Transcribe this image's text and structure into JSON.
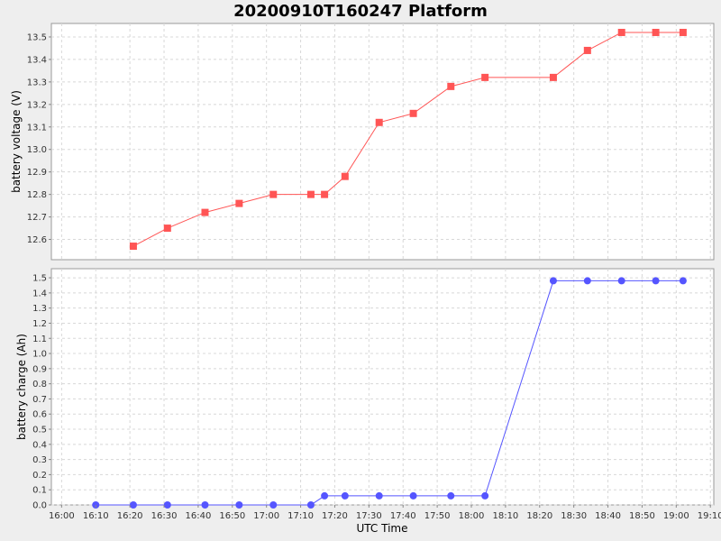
{
  "chart_data": {
    "type": "line",
    "title": "20200910T160247 Platform",
    "xlabel": "UTC Time",
    "x_ticks": [
      "16:00",
      "16:10",
      "16:20",
      "16:30",
      "16:40",
      "16:50",
      "17:00",
      "17:10",
      "17:20",
      "17:30",
      "17:40",
      "17:50",
      "18:00",
      "18:10",
      "18:20",
      "18:30",
      "18:40",
      "18:50",
      "19:00",
      "19:10"
    ],
    "x_range": [
      "15:57",
      "19:11"
    ],
    "grid": true,
    "legend": "none",
    "panels": [
      {
        "ylabel": "battery voltage (V)",
        "ylim": [
          12.51,
          13.56
        ],
        "y_ticks": [
          "12.6",
          "12.7",
          "12.8",
          "12.9",
          "13.0",
          "13.1",
          "13.2",
          "13.3",
          "13.4",
          "13.5"
        ],
        "series": [
          {
            "color": "#ff5555",
            "marker": "square",
            "points": [
              [
                "16:21",
                12.57
              ],
              [
                "16:31",
                12.65
              ],
              [
                "16:42",
                12.72
              ],
              [
                "16:52",
                12.76
              ],
              [
                "17:02",
                12.8
              ],
              [
                "17:13",
                12.8
              ],
              [
                "17:17",
                12.8
              ],
              [
                "17:23",
                12.88
              ],
              [
                "17:33",
                13.12
              ],
              [
                "17:43",
                13.16
              ],
              [
                "17:54",
                13.28
              ],
              [
                "18:04",
                13.32
              ],
              [
                "18:24",
                13.32
              ],
              [
                "18:34",
                13.44
              ],
              [
                "18:44",
                13.52
              ],
              [
                "18:54",
                13.52
              ],
              [
                "19:02",
                13.52
              ]
            ]
          }
        ]
      },
      {
        "ylabel": "battery charge (Ah)",
        "ylim": [
          0,
          1.56
        ],
        "y_ticks": [
          "0.0",
          "0.1",
          "0.2",
          "0.3",
          "0.4",
          "0.5",
          "0.6",
          "0.7",
          "0.8",
          "0.9",
          "1.0",
          "1.1",
          "1.2",
          "1.3",
          "1.4",
          "1.5"
        ],
        "series": [
          {
            "color": "#5555ff",
            "marker": "circle",
            "points": [
              [
                "16:10",
                0.0
              ],
              [
                "16:21",
                0.0
              ],
              [
                "16:31",
                0.0
              ],
              [
                "16:42",
                0.0
              ],
              [
                "16:52",
                0.0
              ],
              [
                "17:02",
                0.0
              ],
              [
                "17:13",
                0.0
              ],
              [
                "17:17",
                0.06
              ],
              [
                "17:23",
                0.06
              ],
              [
                "17:33",
                0.06
              ],
              [
                "17:43",
                0.06
              ],
              [
                "17:54",
                0.06
              ],
              [
                "18:04",
                0.06
              ],
              [
                "18:24",
                1.48
              ],
              [
                "18:34",
                1.48
              ],
              [
                "18:44",
                1.48
              ],
              [
                "18:54",
                1.48
              ],
              [
                "19:02",
                1.48
              ]
            ]
          }
        ]
      }
    ]
  }
}
